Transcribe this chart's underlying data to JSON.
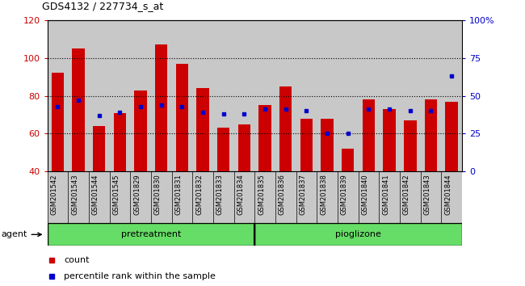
{
  "title": "GDS4132 / 227734_s_at",
  "samples": [
    "GSM201542",
    "GSM201543",
    "GSM201544",
    "GSM201545",
    "GSM201829",
    "GSM201830",
    "GSM201831",
    "GSM201832",
    "GSM201833",
    "GSM201834",
    "GSM201835",
    "GSM201836",
    "GSM201837",
    "GSM201838",
    "GSM201839",
    "GSM201840",
    "GSM201841",
    "GSM201842",
    "GSM201843",
    "GSM201844"
  ],
  "counts": [
    92,
    105,
    64,
    71,
    83,
    107,
    97,
    84,
    63,
    65,
    75,
    85,
    68,
    68,
    52,
    78,
    73,
    67,
    78,
    77
  ],
  "percentiles": [
    43,
    47,
    37,
    39,
    43,
    44,
    43,
    39,
    38,
    38,
    41,
    41,
    40,
    25,
    25,
    41,
    41,
    40,
    40,
    63
  ],
  "bar_color": "#cc0000",
  "dot_color": "#0000cc",
  "ylim_left": [
    40,
    120
  ],
  "ylim_right": [
    0,
    100
  ],
  "yticks_left": [
    40,
    60,
    80,
    100,
    120
  ],
  "yticks_right": [
    0,
    25,
    50,
    75,
    100
  ],
  "yticklabels_right": [
    "0",
    "25",
    "50",
    "75",
    "100%"
  ],
  "bar_width": 0.6,
  "agent_label": "agent",
  "legend_count": "count",
  "legend_pct": "percentile rank within the sample",
  "pretreatment_label": "pretreatment",
  "pioglizone_label": "pioglizone",
  "n_pretreatment": 10,
  "col_bg_color": "#c8c8c8",
  "group_fill": "#66dd66"
}
